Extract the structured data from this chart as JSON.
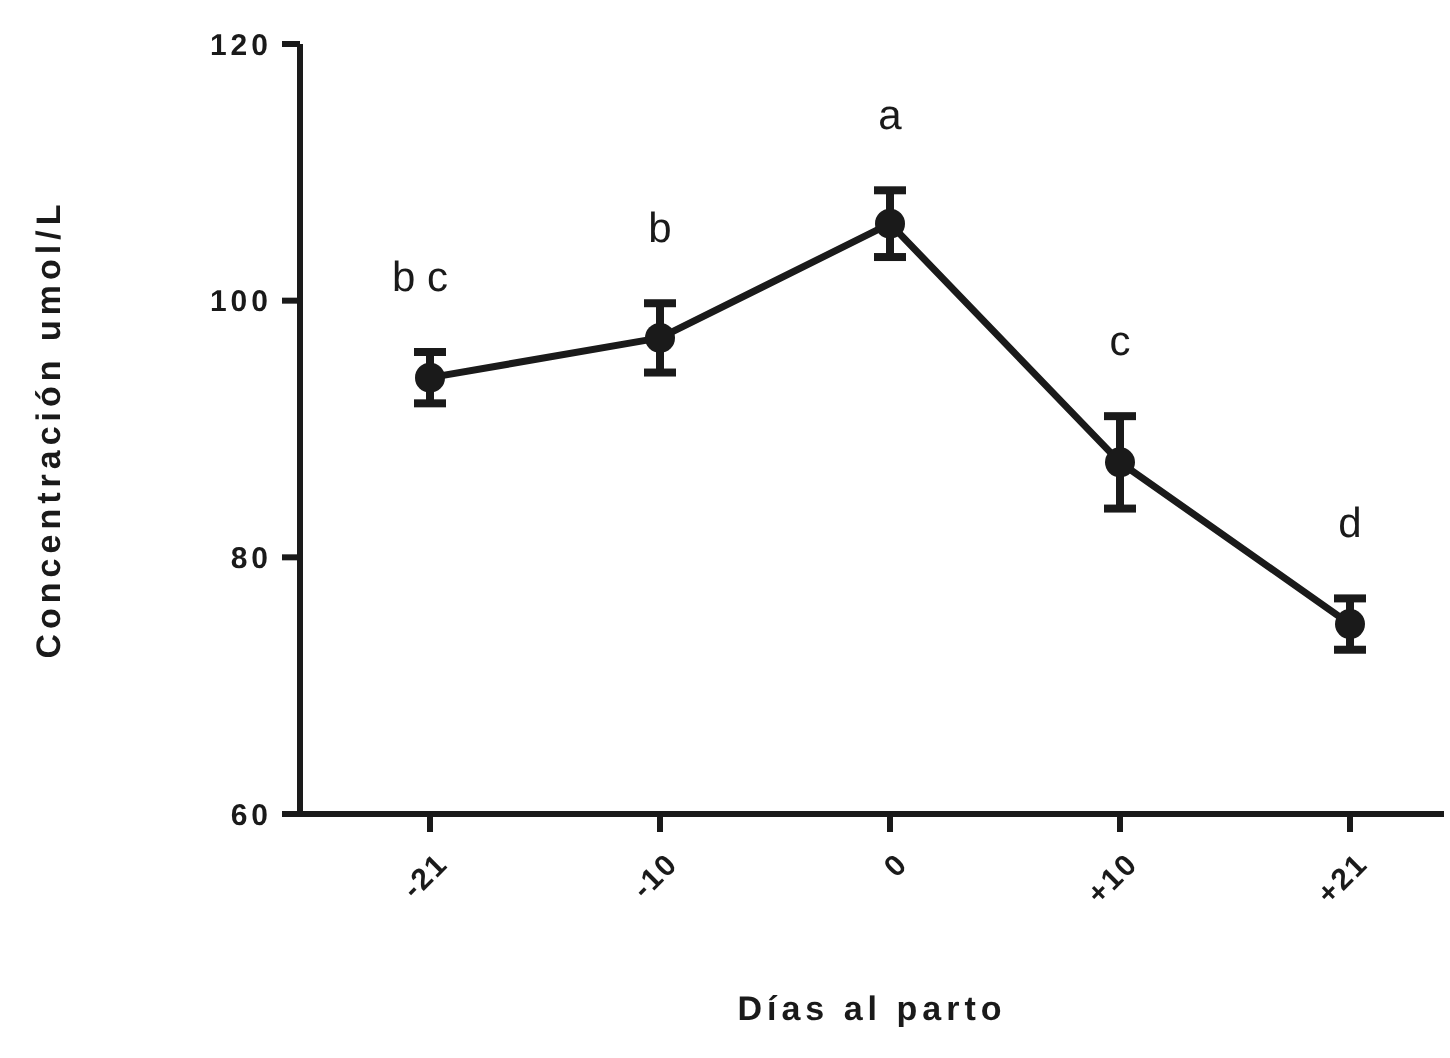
{
  "chart_data": {
    "type": "line",
    "xlabel": "Días al parto",
    "ylabel": "Concentración umol/L",
    "categories": [
      "-21",
      "-10",
      "0",
      "+10",
      "+21"
    ],
    "series": [
      {
        "color": "#1a1a1a",
        "values": [
          94.0,
          97.1,
          106.0,
          87.4,
          74.8
        ],
        "errors": [
          2.0,
          2.7,
          2.6,
          3.6,
          2.0
        ]
      }
    ],
    "ylim": [
      60,
      120
    ],
    "yticks": [
      60,
      80,
      100,
      120
    ],
    "grid": false,
    "marker": "circle",
    "line_style": "solid",
    "annotations": [
      "b c",
      "b",
      "a",
      "c",
      "d"
    ]
  }
}
